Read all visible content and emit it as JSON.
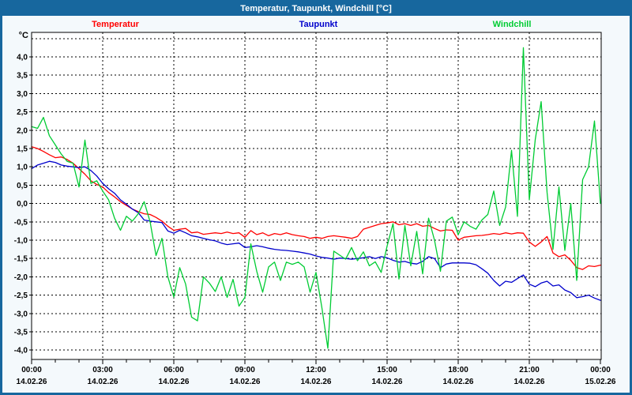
{
  "window": {
    "title": "Temperatur, Taupunkt, Windchill [°C]"
  },
  "legend": [
    {
      "label": "Temperatur",
      "color": "#ff0000",
      "x": 143
    },
    {
      "label": "Taupunkt",
      "color": "#0000cc",
      "x": 400
    },
    {
      "label": "Windchill",
      "color": "#00cc33",
      "x": 645
    }
  ],
  "chart_data": {
    "type": "line",
    "title": "Temperatur, Taupunkt, Windchill [°C]",
    "ylabel": "°C",
    "xlabel": "",
    "grid": true,
    "legend_position": "top",
    "ylim": [
      -4.25,
      4.67
    ],
    "y_ticks": {
      "values": [
        4.0,
        3.5,
        3.0,
        2.5,
        2.0,
        1.5,
        1.0,
        0.5,
        0.0,
        -0.5,
        -1.0,
        -1.5,
        -2.0,
        -2.5,
        -3.0,
        -3.5,
        -4.0
      ],
      "labels": [
        "4,0",
        "3,5",
        "3,0",
        "2,5",
        "2,0",
        "1,5",
        "1,0",
        "0,5",
        "0,0",
        "-0,5",
        "-1,0",
        "-1,5",
        "-2,0",
        "-2,5",
        "-3,0",
        "-3,5",
        "-4,0"
      ]
    },
    "x_axis": {
      "t_start_h": 0,
      "t_end_h": 24,
      "sample_step_h": 0.25,
      "minor_tick_every_h": 1,
      "major_ticks": [
        {
          "t": 0,
          "time": "00:00",
          "date": "14.02.26"
        },
        {
          "t": 3,
          "time": "03:00",
          "date": "14.02.26"
        },
        {
          "t": 6,
          "time": "06:00",
          "date": "14.02.26"
        },
        {
          "t": 9,
          "time": "09:00",
          "date": "14.02.26"
        },
        {
          "t": 12,
          "time": "12:00",
          "date": "14.02.26"
        },
        {
          "t": 15,
          "time": "15:00",
          "date": "14.02.26"
        },
        {
          "t": 18,
          "time": "18:00",
          "date": "14.02.26"
        },
        {
          "t": 21,
          "time": "21:00",
          "date": "14.02.26"
        },
        {
          "t": 24,
          "time": "00:00",
          "date": "15.02.26"
        }
      ]
    },
    "series": [
      {
        "name": "Temperatur",
        "color": "#ff0000",
        "values": [
          1.55,
          1.5,
          1.42,
          1.33,
          1.25,
          1.27,
          1.2,
          1.1,
          0.95,
          0.8,
          0.62,
          0.52,
          0.45,
          0.3,
          0.18,
          0.05,
          -0.05,
          -0.15,
          -0.22,
          -0.28,
          -0.3,
          -0.38,
          -0.48,
          -0.62,
          -0.73,
          -0.7,
          -0.68,
          -0.8,
          -0.78,
          -0.84,
          -0.82,
          -0.8,
          -0.82,
          -0.78,
          -0.82,
          -0.8,
          -0.92,
          -0.74,
          -0.85,
          -0.8,
          -0.88,
          -0.82,
          -0.85,
          -0.8,
          -0.85,
          -0.88,
          -0.9,
          -0.95,
          -0.92,
          -0.95,
          -0.9,
          -0.88,
          -0.9,
          -0.92,
          -0.95,
          -0.9,
          -0.7,
          -0.65,
          -0.6,
          -0.55,
          -0.53,
          -0.5,
          -0.58,
          -0.55,
          -0.6,
          -0.55,
          -0.62,
          -0.6,
          -0.68,
          -0.75,
          -0.72,
          -0.73,
          -1.0,
          -0.92,
          -0.9,
          -0.88,
          -0.87,
          -0.85,
          -0.82,
          -0.84,
          -0.8,
          -0.83,
          -0.8,
          -0.81,
          -1.05,
          -1.17,
          -1.05,
          -0.9,
          -1.35,
          -1.45,
          -1.4,
          -1.55,
          -1.75,
          -1.8,
          -1.7,
          -1.72,
          -1.68
        ]
      },
      {
        "name": "Taupunkt",
        "color": "#0000cc",
        "values": [
          0.95,
          1.05,
          1.1,
          1.15,
          1.12,
          1.05,
          1.02,
          1.0,
          0.98,
          1.0,
          0.9,
          0.75,
          0.55,
          0.4,
          0.28,
          0.1,
          -0.02,
          -0.15,
          -0.25,
          -0.45,
          -0.48,
          -0.5,
          -0.52,
          -0.75,
          -0.81,
          -0.73,
          -0.8,
          -0.88,
          -0.91,
          -0.95,
          -0.99,
          -1.02,
          -1.08,
          -1.12,
          -1.1,
          -1.08,
          -1.2,
          -1.18,
          -1.15,
          -1.18,
          -1.22,
          -1.25,
          -1.27,
          -1.28,
          -1.3,
          -1.32,
          -1.35,
          -1.38,
          -1.43,
          -1.47,
          -1.49,
          -1.52,
          -1.49,
          -1.5,
          -1.52,
          -1.5,
          -1.48,
          -1.45,
          -1.5,
          -1.45,
          -1.48,
          -1.55,
          -1.6,
          -1.58,
          -1.63,
          -1.65,
          -1.58,
          -1.45,
          -1.5,
          -1.75,
          -1.65,
          -1.62,
          -1.62,
          -1.62,
          -1.63,
          -1.67,
          -1.78,
          -1.9,
          -2.1,
          -2.25,
          -2.12,
          -2.15,
          -2.05,
          -1.95,
          -2.2,
          -2.27,
          -2.17,
          -2.12,
          -2.25,
          -2.22,
          -2.36,
          -2.43,
          -2.57,
          -2.54,
          -2.5,
          -2.58,
          -2.64
        ]
      },
      {
        "name": "Windchill",
        "color": "#00cc33",
        "values": [
          2.1,
          2.05,
          2.35,
          1.85,
          1.6,
          1.35,
          1.15,
          1.1,
          0.45,
          1.73,
          0.55,
          0.62,
          0.34,
          0.1,
          -0.4,
          -0.73,
          -0.35,
          -0.48,
          -0.28,
          0.05,
          -0.5,
          -1.42,
          -0.95,
          -2.0,
          -2.55,
          -1.75,
          -2.2,
          -3.1,
          -3.2,
          -2.0,
          -2.17,
          -2.4,
          -2.0,
          -2.56,
          -2.07,
          -2.8,
          -2.56,
          -1.1,
          -1.85,
          -2.42,
          -1.73,
          -1.6,
          -2.1,
          -1.6,
          -1.66,
          -1.6,
          -1.73,
          -2.42,
          -1.88,
          -2.85,
          -3.95,
          -1.3,
          -1.41,
          -1.52,
          -1.2,
          -1.56,
          -1.32,
          -1.7,
          -1.59,
          -1.88,
          -1.16,
          -0.55,
          -2.06,
          -0.6,
          -1.7,
          -0.76,
          -1.92,
          -0.4,
          -1.0,
          -1.85,
          -0.48,
          -0.37,
          -0.85,
          -0.5,
          -0.62,
          -0.7,
          -0.45,
          -0.3,
          0.34,
          -0.6,
          -0.1,
          1.45,
          -0.35,
          4.25,
          0.1,
          1.74,
          2.78,
          0.3,
          -1.25,
          0.45,
          -1.28,
          0.0,
          -2.1,
          0.65,
          1.0,
          2.25,
          0.0
        ]
      }
    ]
  }
}
